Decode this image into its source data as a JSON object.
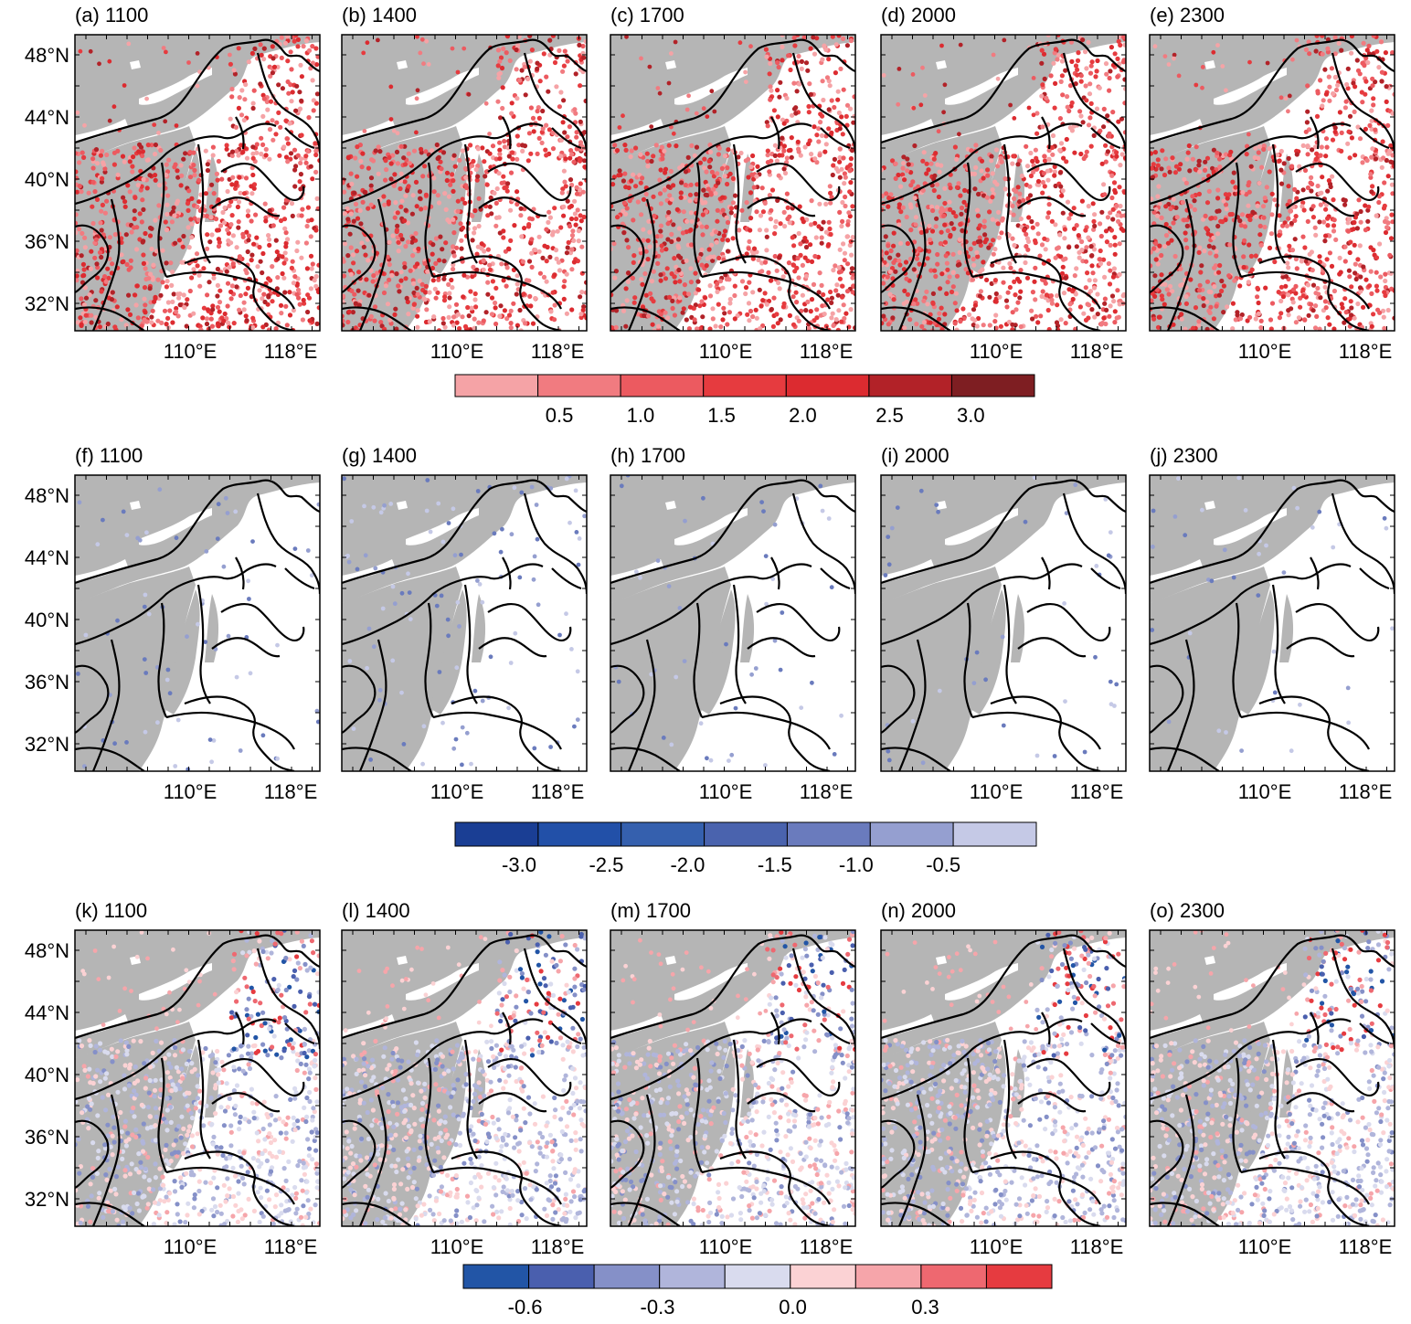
{
  "rows": [
    {
      "id": "row-positive",
      "panels": [
        {
          "label": "(a) 1100"
        },
        {
          "label": "(b) 1400"
        },
        {
          "label": "(c) 1700"
        },
        {
          "label": "(d) 2000"
        },
        {
          "label": "(e) 2300"
        }
      ],
      "colorbar": {
        "colors": [
          "#f5a3a6",
          "#f17b80",
          "#ec5a60",
          "#e63b3f",
          "#dc2b30",
          "#b22228",
          "#7e1e22"
        ],
        "ticks": [
          "0.5",
          "1.0",
          "1.5",
          "2.0",
          "2.5",
          "3.0"
        ]
      }
    },
    {
      "id": "row-negative",
      "panels": [
        {
          "label": "(f) 1100"
        },
        {
          "label": "(g) 1400"
        },
        {
          "label": "(h) 1700"
        },
        {
          "label": "(i) 2000"
        },
        {
          "label": "(j) 2300"
        }
      ],
      "colorbar": {
        "colors": [
          "#1a3e94",
          "#2250a8",
          "#3560ae",
          "#4a63ae",
          "#6a7bbd",
          "#959fd0",
          "#c5c9e6"
        ],
        "ticks": [
          "-3.0",
          "-2.5",
          "-2.0",
          "-1.5",
          "-1.0",
          "-0.5"
        ]
      }
    },
    {
      "id": "row-difference",
      "panels": [
        {
          "label": "(k) 1100"
        },
        {
          "label": "(l) 1400"
        },
        {
          "label": "(m) 1700"
        },
        {
          "label": "(n) 2000"
        },
        {
          "label": "(o) 2300"
        }
      ],
      "colorbar": {
        "colors": [
          "#2255a6",
          "#4a5fae",
          "#8590c8",
          "#b0b5db",
          "#d9dbee",
          "#fbd2d4",
          "#f6a5aa",
          "#ee6870",
          "#e63b40"
        ],
        "ticks": [
          "-0.6",
          "-0.3",
          "0.0",
          "0.3"
        ]
      }
    }
  ],
  "axes": {
    "lat_ticks": [
      "48°N",
      "44°N",
      "40°N",
      "36°N",
      "32°N"
    ],
    "lon_ticks": [
      "110°E",
      "118°E"
    ]
  },
  "map_colors": {
    "terrain_gray": "#b5b5b5",
    "boundary": "#000000"
  }
}
